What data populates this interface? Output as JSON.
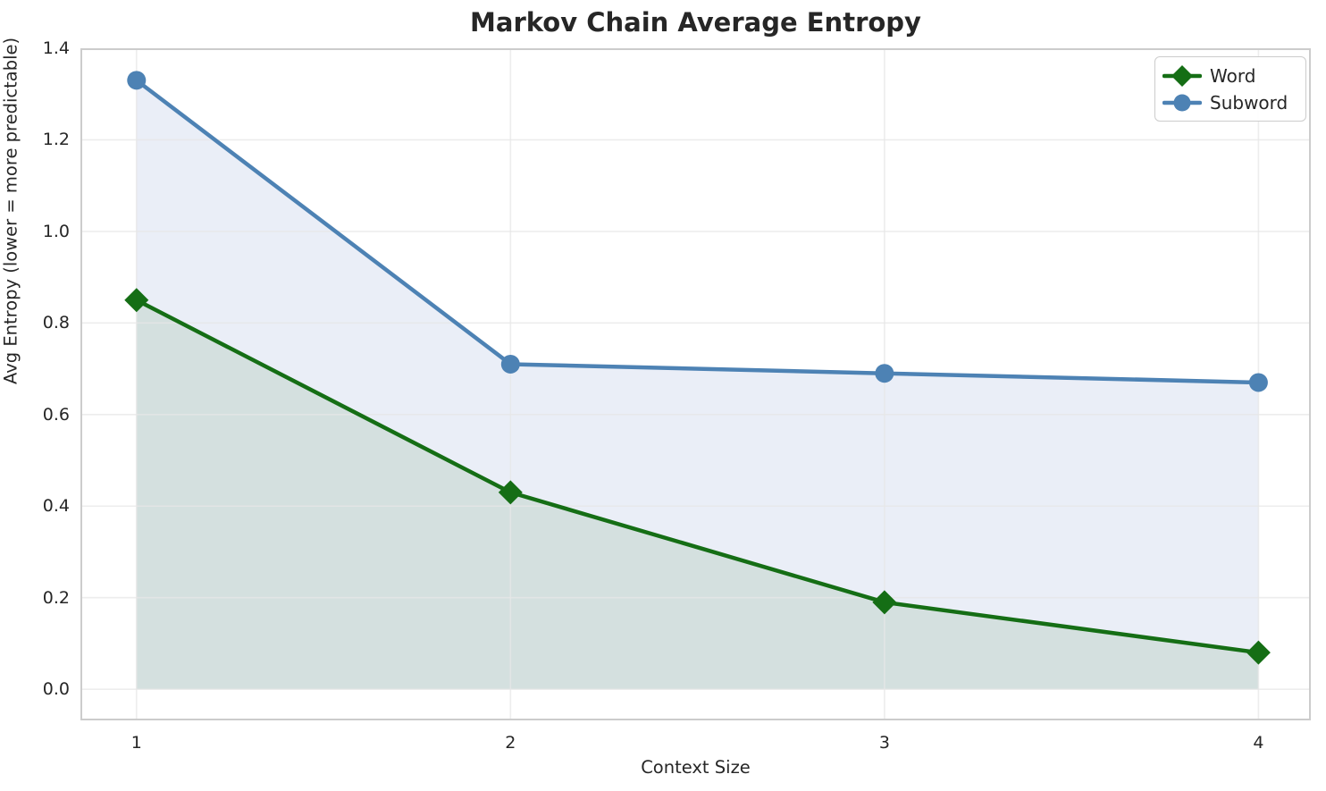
{
  "title": "Markov Chain Average Entropy",
  "chart_data": {
    "type": "line",
    "x": [
      1,
      2,
      3,
      4
    ],
    "series": [
      {
        "name": "Word",
        "values": [
          0.85,
          0.43,
          0.19,
          0.08
        ],
        "color": "#156e15",
        "fill_color": "rgba(21,110,21,0.10)",
        "marker": "diamond",
        "area_fill_to_zero": true
      },
      {
        "name": "Subword",
        "values": [
          1.33,
          0.71,
          0.69,
          0.67
        ],
        "color": "#4d82b4",
        "fill_color": "rgba(90,125,195,0.13)",
        "marker": "circle",
        "area_fill_to_zero": true
      }
    ],
    "title": "Markov Chain Average Entropy",
    "xlabel": "Context Size",
    "ylabel": "Avg Entropy (lower = more predictable)",
    "xticks": [
      "1",
      "2",
      "3",
      "4"
    ],
    "yticks": [
      "0.0",
      "0.2",
      "0.4",
      "0.6",
      "0.8",
      "1.0",
      "1.2",
      "1.4"
    ],
    "xlim": [
      0.85,
      4.14
    ],
    "ylim": [
      -0.068,
      1.4
    ],
    "grid": true,
    "grid_color": "#e7e7e7",
    "spine_color": "#cccccc",
    "background_color": "#ffffff",
    "legend_position": "upper right"
  }
}
